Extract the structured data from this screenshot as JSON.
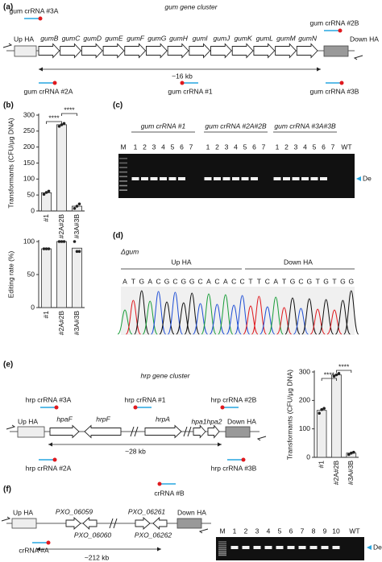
{
  "panel_labels": [
    "(a)",
    "(b)",
    "(c)",
    "(d)",
    "(e)",
    "(f)"
  ],
  "a": {
    "title": "gum gene cluster",
    "up": "Up HA",
    "down": "Down HA",
    "span": "~16 kb",
    "genes": [
      "gumB",
      "gumC",
      "gumD",
      "gumE",
      "gumF",
      "gumG",
      "gumH",
      "gumI",
      "gumJ",
      "gumK",
      "gumL",
      "gumM",
      "gumN"
    ],
    "crrnas": [
      "gum crRNA #3A",
      "gum crRNA #2B",
      "gum crRNA #2A",
      "gum crRNA #1",
      "gum crRNA #3B"
    ]
  },
  "c": {
    "marker_lane": "M",
    "groups": [
      "gum crRNA #1",
      "gum crRNA #2A#2B",
      "gum crRNA #3A#3B"
    ],
    "lanes": [
      "1",
      "2",
      "3",
      "4",
      "5",
      "6",
      "7"
    ],
    "wt": "WT",
    "band_label": "De"
  },
  "d": {
    "title": "Δgum",
    "regions": [
      "Up HA",
      "Down HA"
    ],
    "sequence": [
      "A",
      "T",
      "G",
      "A",
      "C",
      "G",
      "C",
      "G",
      "G",
      "C",
      "A",
      "C",
      "A",
      "C",
      "C",
      "T",
      "T",
      "C",
      "A",
      "T",
      "G",
      "C",
      "G",
      "T",
      "G",
      "T",
      "G",
      "G"
    ]
  },
  "e": {
    "title": "hrp gene cluster",
    "up": "Up HA",
    "down": "Down HA",
    "span": "~28 kb",
    "genes": [
      "hpaF",
      "hrpF",
      "hrpA",
      "hpa1",
      "hpa2"
    ],
    "crrnas": [
      "hrp crRNA #3A",
      "hrp crRNA #1",
      "hrp crRNA #2B",
      "hrp crRNA #2A",
      "hrp crRNA #3B"
    ]
  },
  "f": {
    "up": "Up HA",
    "down": "Down HA",
    "span": "~212 kb",
    "genes": [
      "PXO_06059",
      "PXO_06060",
      "PXO_06261",
      "PXO_06262"
    ],
    "crrnas": [
      "crRNA #B",
      "crRNA #A"
    ],
    "marker_lane": "M",
    "lanes": [
      "1",
      "2",
      "3",
      "4",
      "5",
      "6",
      "7",
      "8",
      "9",
      "10"
    ],
    "wt": "WT",
    "band_label": "De"
  },
  "chart_data": [
    {
      "type": "bar",
      "y_label": "Transformants (CFU/μg DNA)",
      "categories": [
        "#1",
        "#2A#2B",
        "#3A#3B"
      ],
      "values": [
        57,
        270,
        15
      ],
      "points": [
        [
          52,
          58,
          62
        ],
        [
          265,
          270,
          274
        ],
        [
          8,
          15,
          22
        ]
      ],
      "color": "#eeeeee",
      "ylim": [
        0,
        300
      ],
      "yticks": [
        0,
        50,
        100,
        150,
        200,
        250,
        300
      ],
      "annotations": [
        "****",
        "****"
      ]
    },
    {
      "type": "bar",
      "y_label": "Editing rate (%)",
      "categories": [
        "#1",
        "#2A#2B",
        "#3A#3B"
      ],
      "values": [
        89,
        100,
        90
      ],
      "points": [
        [
          89,
          89,
          89
        ],
        [
          100,
          100,
          100
        ],
        [
          100,
          85,
          85
        ]
      ],
      "color": "#eeeeee",
      "ylim": [
        0,
        100
      ],
      "yticks": [
        0,
        50,
        100
      ]
    },
    {
      "type": "bar",
      "y_label": "Transformants (CFU/μg DNA)",
      "categories": [
        "#1",
        "#2A#2B",
        "#3A#3B"
      ],
      "values": [
        165,
        290,
        15
      ],
      "points": [
        [
          155,
          168,
          172
        ],
        [
          285,
          290,
          295
        ],
        [
          10,
          15,
          18
        ]
      ],
      "color": "#eeeeee",
      "ylim": [
        0,
        300
      ],
      "yticks": [
        0,
        100,
        200,
        300
      ],
      "annotations": [
        "****",
        "****"
      ]
    }
  ]
}
